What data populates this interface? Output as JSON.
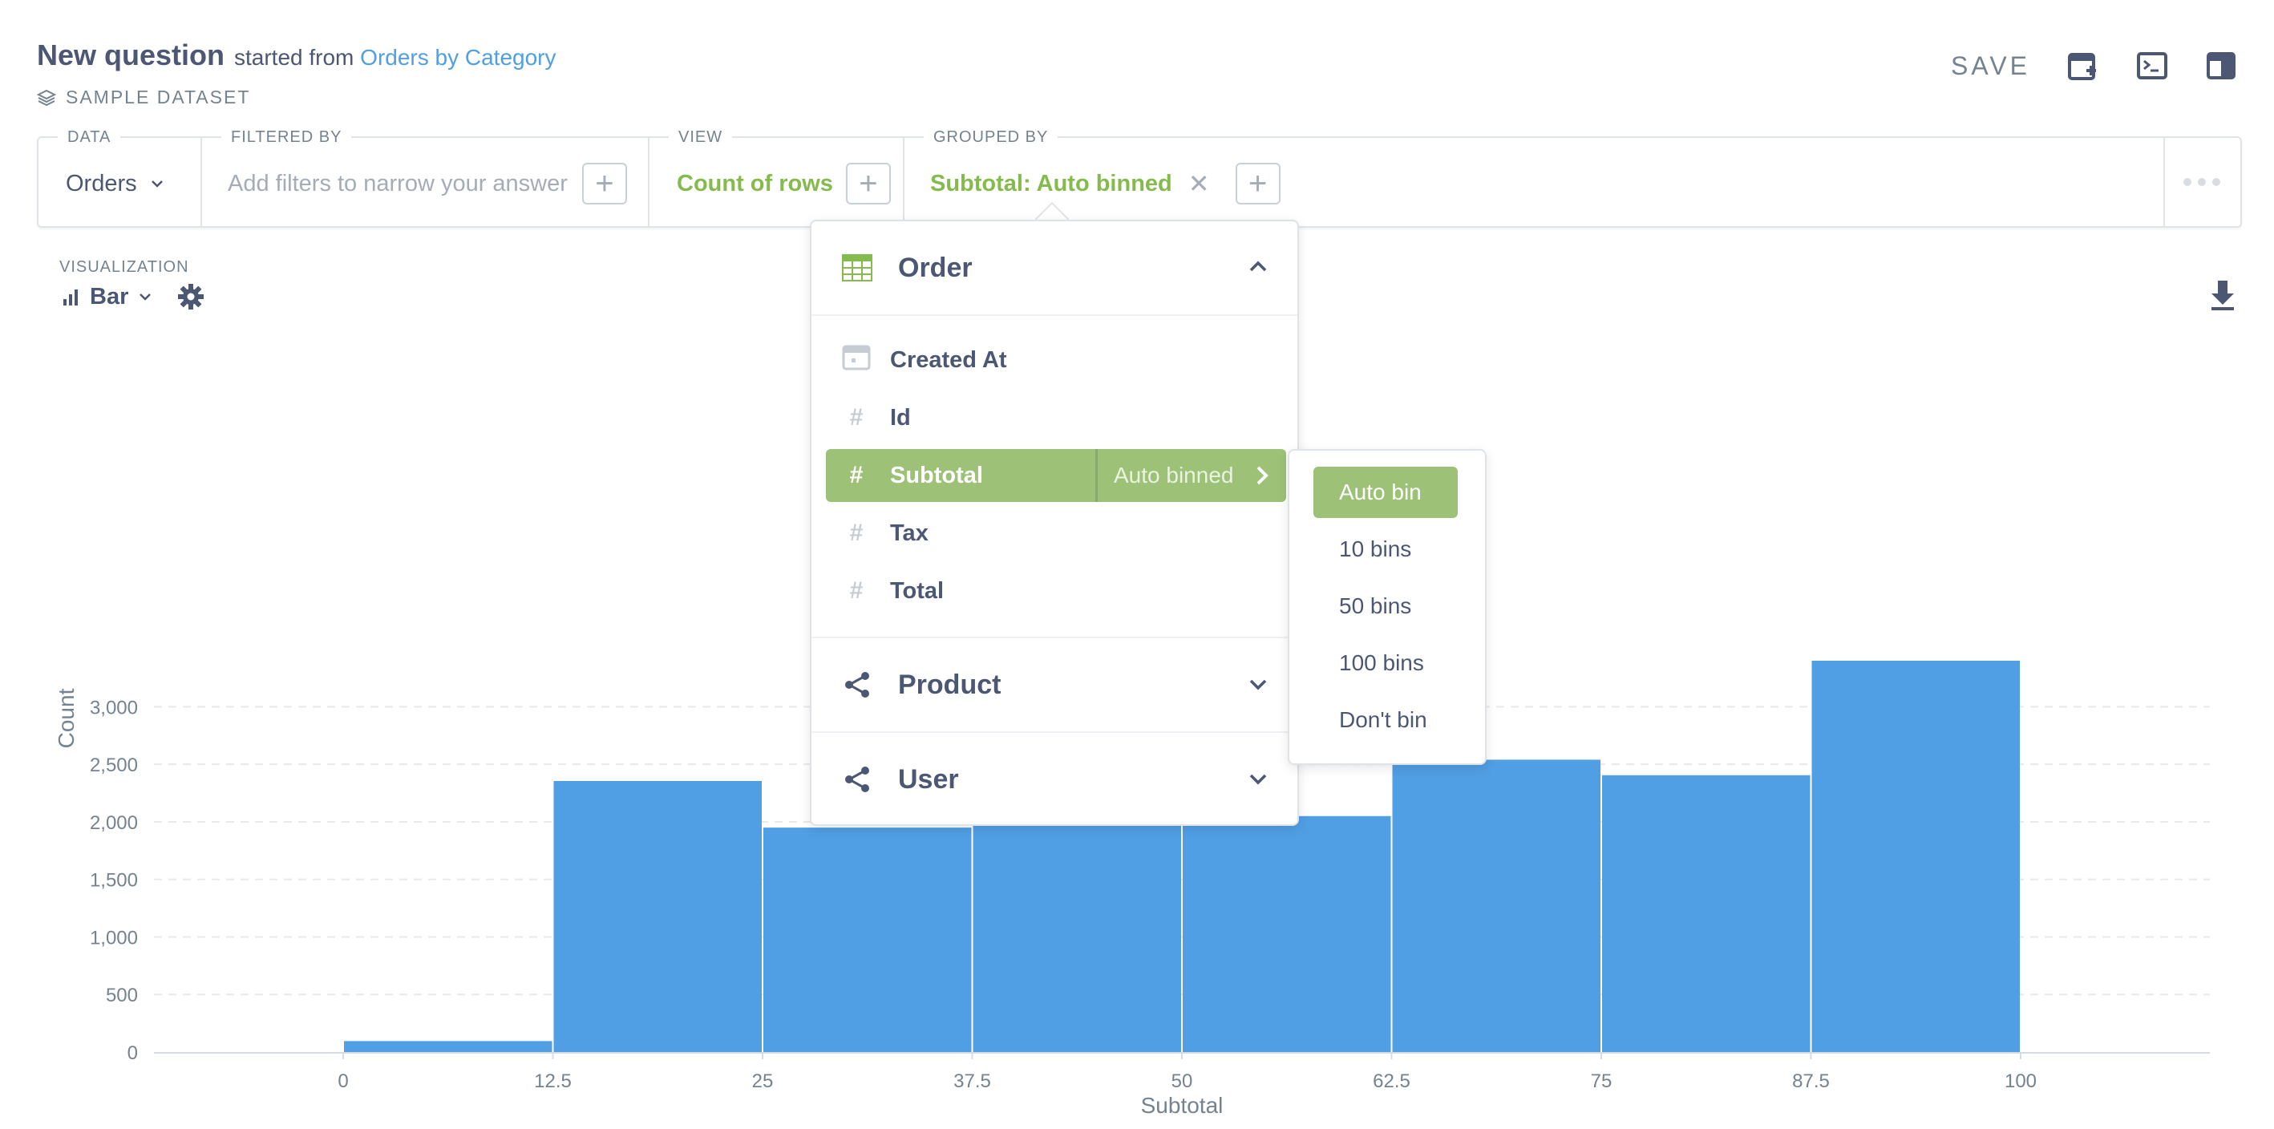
{
  "header": {
    "title": "New question",
    "started_from_prefix": "started from",
    "started_from_link": "Orders by Category",
    "dataset": "SAMPLE DATASET",
    "save_label": "SAVE"
  },
  "query_builder": {
    "data": {
      "label": "DATA",
      "value": "Orders"
    },
    "filtered_by": {
      "label": "FILTERED BY",
      "placeholder": "Add filters to narrow your answer"
    },
    "view": {
      "label": "VIEW",
      "value": "Count of rows"
    },
    "grouped_by": {
      "label": "GROUPED BY",
      "value": "Subtotal: Auto binned"
    }
  },
  "visualization": {
    "label": "VISUALIZATION",
    "type": "Bar"
  },
  "column_picker": {
    "sections": [
      {
        "name": "Order",
        "expanded": true
      },
      {
        "name": "Product",
        "expanded": false
      },
      {
        "name": "User",
        "expanded": false
      }
    ],
    "fields": [
      {
        "name": "Created At",
        "icon": "calendar-icon"
      },
      {
        "name": "Id",
        "icon": "hash-icon"
      },
      {
        "name": "Subtotal",
        "icon": "hash-icon",
        "active": true,
        "binning": "Auto binned"
      },
      {
        "name": "Tax",
        "icon": "hash-icon"
      },
      {
        "name": "Total",
        "icon": "hash-icon"
      }
    ]
  },
  "binning_menu": {
    "options": [
      "Auto bin",
      "10 bins",
      "50 bins",
      "100 bins",
      "Don't bin"
    ],
    "selected": "Auto bin"
  },
  "colors": {
    "accent_green": "#84bb4c",
    "bar_blue": "#509ee3",
    "link_blue": "#509ee3",
    "text_dark": "#4c5773",
    "text_muted": "#74838f"
  },
  "chart_data": {
    "type": "bar",
    "x": [
      0,
      12.5,
      25,
      37.5,
      50,
      62.5,
      75,
      87.5
    ],
    "bin_width": 12.5,
    "values": [
      95,
      2355,
      1950,
      2000,
      2050,
      2540,
      2405,
      3400
    ],
    "xticks": [
      "0",
      "12.5",
      "25",
      "37.5",
      "50",
      "62.5",
      "75",
      "87.5",
      "100"
    ],
    "yticks": [
      "0",
      "500",
      "1,000",
      "1,500",
      "2,000",
      "2,500",
      "3,000"
    ],
    "xlabel": "Subtotal",
    "ylabel": "Count",
    "ylim": [
      0,
      3400
    ],
    "grid": true
  }
}
